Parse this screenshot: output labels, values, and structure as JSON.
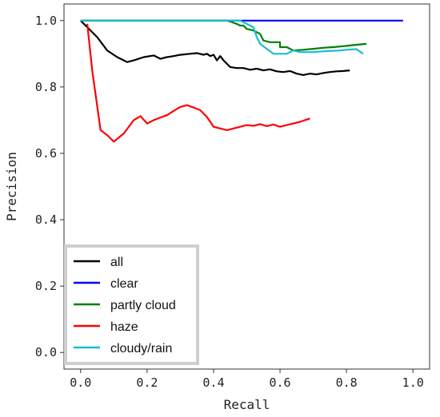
{
  "chart_data": {
    "type": "line",
    "title": "",
    "xlabel": "Recall",
    "ylabel": "Precision",
    "xlim": [
      -0.05,
      1.05
    ],
    "ylim": [
      -0.05,
      1.05
    ],
    "xticks": [
      "0.0",
      "0.2",
      "0.4",
      "0.6",
      "0.8",
      "1.0"
    ],
    "yticks": [
      "0.0",
      "0.2",
      "0.4",
      "0.6",
      "0.8",
      "1.0"
    ],
    "grid": false,
    "legend_position": "bottom-left",
    "series": [
      {
        "name": "all",
        "color": "#000000",
        "x": [
          0.0,
          0.02,
          0.05,
          0.08,
          0.11,
          0.14,
          0.16,
          0.19,
          0.22,
          0.24,
          0.26,
          0.28,
          0.3,
          0.33,
          0.35,
          0.37,
          0.38,
          0.39,
          0.4,
          0.41,
          0.42,
          0.43,
          0.44,
          0.45,
          0.47,
          0.49,
          0.51,
          0.53,
          0.55,
          0.57,
          0.59,
          0.61,
          0.63,
          0.65,
          0.67,
          0.69,
          0.71,
          0.73,
          0.75,
          0.77,
          0.79,
          0.81
        ],
        "y": [
          1.0,
          0.98,
          0.95,
          0.91,
          0.89,
          0.875,
          0.88,
          0.89,
          0.895,
          0.885,
          0.89,
          0.893,
          0.897,
          0.9,
          0.902,
          0.897,
          0.9,
          0.893,
          0.897,
          0.88,
          0.893,
          0.88,
          0.87,
          0.86,
          0.857,
          0.857,
          0.852,
          0.855,
          0.85,
          0.853,
          0.847,
          0.845,
          0.848,
          0.84,
          0.836,
          0.84,
          0.838,
          0.842,
          0.845,
          0.847,
          0.848,
          0.85
        ]
      },
      {
        "name": "clear",
        "color": "#0000ff",
        "x": [
          0.0,
          0.97
        ],
        "y": [
          1.0,
          1.0
        ]
      },
      {
        "name": "partly cloud",
        "color": "#008000",
        "x": [
          0.0,
          0.44,
          0.45,
          0.47,
          0.48,
          0.49,
          0.5,
          0.52,
          0.54,
          0.55,
          0.57,
          0.6,
          0.6,
          0.62,
          0.64,
          0.67,
          0.7,
          0.73,
          0.76,
          0.79,
          0.82,
          0.86
        ],
        "y": [
          1.0,
          1.0,
          0.997,
          0.99,
          0.985,
          0.985,
          0.975,
          0.97,
          0.96,
          0.94,
          0.935,
          0.935,
          0.92,
          0.92,
          0.91,
          0.912,
          0.915,
          0.918,
          0.92,
          0.923,
          0.926,
          0.93
        ]
      },
      {
        "name": "haze",
        "color": "#ff0000",
        "x": [
          0.02,
          0.035,
          0.06,
          0.08,
          0.1,
          0.13,
          0.16,
          0.18,
          0.2,
          0.22,
          0.24,
          0.26,
          0.28,
          0.3,
          0.32,
          0.34,
          0.36,
          0.38,
          0.39,
          0.4,
          0.42,
          0.44,
          0.46,
          0.48,
          0.5,
          0.52,
          0.54,
          0.56,
          0.58,
          0.6,
          0.62,
          0.64,
          0.66,
          0.69
        ],
        "y": [
          0.99,
          0.85,
          0.67,
          0.655,
          0.635,
          0.66,
          0.7,
          0.712,
          0.69,
          0.7,
          0.708,
          0.715,
          0.728,
          0.74,
          0.745,
          0.738,
          0.73,
          0.71,
          0.695,
          0.68,
          0.675,
          0.67,
          0.675,
          0.68,
          0.685,
          0.683,
          0.688,
          0.682,
          0.687,
          0.68,
          0.685,
          0.69,
          0.695,
          0.705
        ]
      },
      {
        "name": "cloudy/rain",
        "color": "#17becf",
        "x": [
          0.0,
          0.48,
          0.5,
          0.52,
          0.53,
          0.54,
          0.58,
          0.62,
          0.64,
          0.66,
          0.7,
          0.74,
          0.78,
          0.8,
          0.83,
          0.85
        ],
        "y": [
          1.0,
          1.0,
          0.99,
          0.98,
          0.95,
          0.93,
          0.9,
          0.9,
          0.91,
          0.905,
          0.905,
          0.908,
          0.91,
          0.912,
          0.914,
          0.9
        ]
      }
    ]
  }
}
